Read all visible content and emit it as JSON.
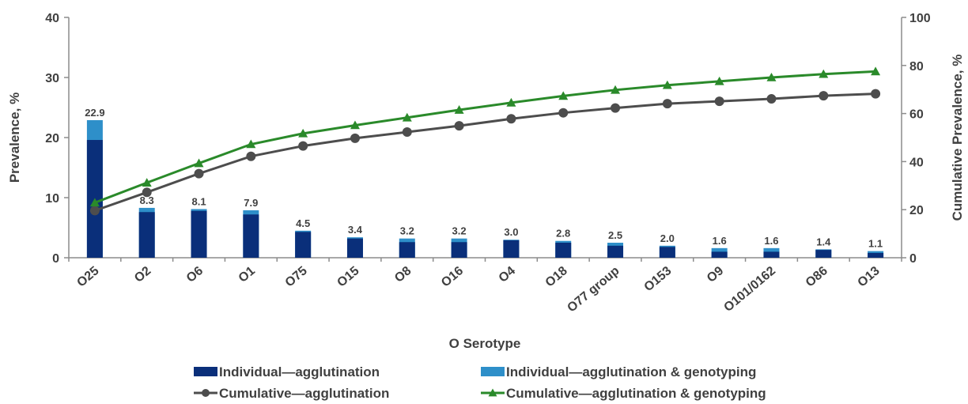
{
  "colors": {
    "agglutination_bar": "#0a2f7a",
    "genotyping_bar": "#2e8fc9",
    "cumulative_agglutination": "#4d4d4d",
    "cumulative_genotyping": "#2a8a2a",
    "text": "#404040",
    "axis": "#8c8c8c"
  },
  "chart_data": {
    "type": "bar",
    "xlabel": "O Serotype",
    "ylabel": "Prevalence, %",
    "y2label": "Cumulative Prevalence, %",
    "ylim": [
      0,
      40
    ],
    "y2lim": [
      0,
      100
    ],
    "yticks": [
      "0",
      "10",
      "20",
      "30",
      "40"
    ],
    "y2ticks": [
      "0",
      "20",
      "40",
      "60",
      "80",
      "100"
    ],
    "grid": false,
    "legend_position": "bottom",
    "categories": [
      "O25",
      "O2",
      "O6",
      "O1",
      "O75",
      "O15",
      "O8",
      "O16",
      "O4",
      "O18",
      "O77 group",
      "O153",
      "O9",
      "O101/0162",
      "O86",
      "O13"
    ],
    "data_labels": [
      "22.9",
      "8.3",
      "8.1",
      "7.9",
      "4.5",
      "3.4",
      "3.2",
      "3.2",
      "3.0",
      "2.8",
      "2.5",
      "2.0",
      "1.6",
      "1.6",
      "1.4",
      "1.1"
    ],
    "series": [
      {
        "name": "Individual—agglutination",
        "kind": "bar",
        "axis": "left",
        "values": [
          19.6,
          7.6,
          7.8,
          7.2,
          4.3,
          3.2,
          2.6,
          2.6,
          2.9,
          2.5,
          2.0,
          1.8,
          1.0,
          1.0,
          1.3,
          0.8
        ]
      },
      {
        "name": "Individual—agglutination & genotyping",
        "kind": "bar",
        "axis": "left",
        "values": [
          22.9,
          8.3,
          8.1,
          7.9,
          4.5,
          3.4,
          3.2,
          3.2,
          3.0,
          2.8,
          2.5,
          2.0,
          1.6,
          1.6,
          1.4,
          1.1
        ]
      },
      {
        "name": "Cumulative—agglutination",
        "kind": "line",
        "marker": "circle",
        "axis": "right",
        "values": [
          19.6,
          27.2,
          35.0,
          42.2,
          46.5,
          49.7,
          52.3,
          54.9,
          57.8,
          60.3,
          62.3,
          64.1,
          65.1,
          66.1,
          67.4,
          68.2
        ]
      },
      {
        "name": "Cumulative—agglutination & genotyping",
        "kind": "line",
        "marker": "triangle",
        "axis": "right",
        "values": [
          22.9,
          31.2,
          39.3,
          47.2,
          51.7,
          55.1,
          58.3,
          61.5,
          64.5,
          67.3,
          69.8,
          71.8,
          73.4,
          75.0,
          76.4,
          77.5
        ]
      }
    ]
  }
}
